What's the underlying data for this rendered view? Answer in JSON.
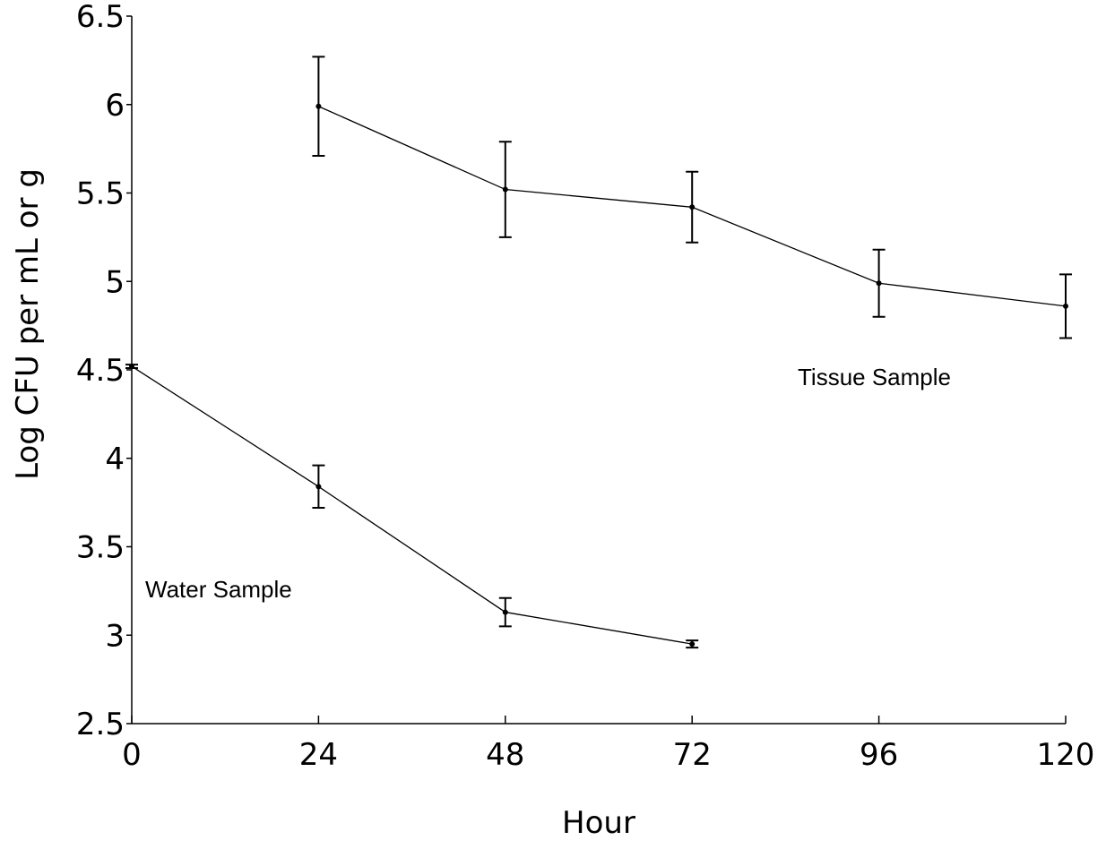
{
  "chart_data": {
    "type": "line",
    "x_label": "Hour",
    "y_label": "Log CFU per mL  or g",
    "xlim": [
      0,
      120
    ],
    "xticks": [
      0,
      24,
      48,
      72,
      96,
      120
    ],
    "ylim": [
      2.5,
      6.5
    ],
    "yticks": [
      2.5,
      3,
      3.5,
      4,
      4.5,
      5,
      5.5,
      6,
      6.5
    ],
    "series": [
      {
        "name": "Tissue Sample",
        "color": "#000000",
        "x": [
          24,
          48,
          72,
          96,
          120
        ],
        "values": [
          5.99,
          5.52,
          5.42,
          4.99,
          4.86
        ],
        "errors": [
          0.28,
          0.27,
          0.2,
          0.19,
          0.18
        ]
      },
      {
        "name": "Water Sample",
        "color": "#000000",
        "x": [
          0,
          24,
          48,
          72
        ],
        "values": [
          4.52,
          3.84,
          3.13,
          2.95
        ],
        "errors": [
          0.01,
          0.12,
          0.08,
          0.02
        ]
      }
    ]
  }
}
